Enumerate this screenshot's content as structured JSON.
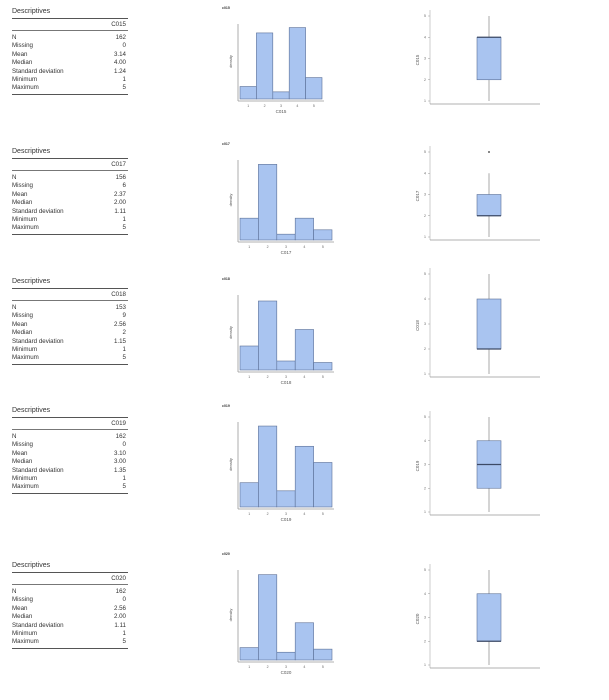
{
  "blocks": [
    {
      "variable": "C015",
      "descriptives": {
        "title": "Descriptives",
        "column": "C015",
        "rows": [
          {
            "label": "N",
            "value": "162"
          },
          {
            "label": "Missing",
            "value": "0"
          },
          {
            "label": "Mean",
            "value": "3.14"
          },
          {
            "label": "Median",
            "value": "4.00"
          },
          {
            "label": "Standard deviation",
            "value": "1.24"
          },
          {
            "label": "Minimum",
            "value": "1"
          },
          {
            "label": "Maximum",
            "value": "5"
          }
        ]
      },
      "histogram": {
        "title": "C015",
        "xlabel": "C015",
        "ylabel": "density"
      },
      "boxplot": {
        "ylabel": "C015"
      }
    },
    {
      "variable": "C017",
      "descriptives": {
        "title": "Descriptives",
        "column": "C017",
        "rows": [
          {
            "label": "N",
            "value": "156"
          },
          {
            "label": "Missing",
            "value": "6"
          },
          {
            "label": "Mean",
            "value": "2.37"
          },
          {
            "label": "Median",
            "value": "2.00"
          },
          {
            "label": "Standard deviation",
            "value": "1.11"
          },
          {
            "label": "Minimum",
            "value": "1"
          },
          {
            "label": "Maximum",
            "value": "5"
          }
        ]
      },
      "histogram": {
        "title": "C017",
        "xlabel": "C017",
        "ylabel": "density"
      },
      "boxplot": {
        "ylabel": "C017"
      }
    },
    {
      "variable": "C018",
      "descriptives": {
        "title": "Descriptives",
        "column": "C018",
        "rows": [
          {
            "label": "N",
            "value": "153"
          },
          {
            "label": "Missing",
            "value": "9"
          },
          {
            "label": "Mean",
            "value": "2.56"
          },
          {
            "label": "Median",
            "value": "2"
          },
          {
            "label": "Standard deviation",
            "value": "1.15"
          },
          {
            "label": "Minimum",
            "value": "1"
          },
          {
            "label": "Maximum",
            "value": "5"
          }
        ]
      },
      "histogram": {
        "title": "C018",
        "xlabel": "C018",
        "ylabel": "density"
      },
      "boxplot": {
        "ylabel": "C018"
      }
    },
    {
      "variable": "C019",
      "descriptives": {
        "title": "Descriptives",
        "column": "C019",
        "rows": [
          {
            "label": "N",
            "value": "162"
          },
          {
            "label": "Missing",
            "value": "0"
          },
          {
            "label": "Mean",
            "value": "3.10"
          },
          {
            "label": "Median",
            "value": "3.00"
          },
          {
            "label": "Standard deviation",
            "value": "1.35"
          },
          {
            "label": "Minimum",
            "value": "1"
          },
          {
            "label": "Maximum",
            "value": "5"
          }
        ]
      },
      "histogram": {
        "title": "C019",
        "xlabel": "C019",
        "ylabel": "density"
      },
      "boxplot": {
        "ylabel": "C019"
      }
    },
    {
      "variable": "C020",
      "descriptives": {
        "title": "Descriptives",
        "column": "C020",
        "rows": [
          {
            "label": "N",
            "value": "162"
          },
          {
            "label": "Missing",
            "value": "0"
          },
          {
            "label": "Mean",
            "value": "2.56"
          },
          {
            "label": "Median",
            "value": "2.00"
          },
          {
            "label": "Standard deviation",
            "value": "1.11"
          },
          {
            "label": "Minimum",
            "value": "1"
          },
          {
            "label": "Maximum",
            "value": "5"
          }
        ]
      },
      "histogram": {
        "title": "C020",
        "xlabel": "C020",
        "ylabel": "density"
      },
      "boxplot": {
        "ylabel": "C020"
      }
    }
  ],
  "colors": {
    "fill": "#a9c4f0",
    "stroke": "#5b6f96",
    "axis": "#999999",
    "median": "#3d4a66",
    "whisker": "#aaaaaa"
  },
  "chart_data": [
    {
      "type": "bar",
      "title": "C015",
      "xlabel": "C015",
      "ylabel": "density",
      "categories": [
        "1",
        "2",
        "3",
        "4",
        "5"
      ],
      "values": [
        0.07,
        0.37,
        0.04,
        0.4,
        0.12
      ],
      "ylim": [
        0,
        0.42
      ]
    },
    {
      "type": "box",
      "ylabel": "C015",
      "yticks": [
        1,
        2,
        3,
        4,
        5
      ],
      "min": 1,
      "q1": 2,
      "median": 4,
      "q3": 4,
      "max": 5,
      "outliers": []
    },
    {
      "type": "bar",
      "title": "C017",
      "xlabel": "C017",
      "ylabel": "density",
      "categories": [
        "1",
        "2",
        "3",
        "4",
        "5"
      ],
      "values": [
        0.15,
        0.52,
        0.04,
        0.15,
        0.07
      ],
      "ylim": [
        0,
        0.55
      ]
    },
    {
      "type": "box",
      "ylabel": "C017",
      "yticks": [
        1,
        2,
        3,
        4,
        5
      ],
      "min": 1,
      "q1": 2,
      "median": 2,
      "q3": 3,
      "max": 4,
      "outliers": [
        5
      ]
    },
    {
      "type": "bar",
      "title": "C018",
      "xlabel": "C018",
      "ylabel": "density",
      "categories": [
        "1",
        "2",
        "3",
        "4",
        "5"
      ],
      "values": [
        0.16,
        0.46,
        0.06,
        0.27,
        0.05
      ],
      "ylim": [
        0,
        0.5
      ]
    },
    {
      "type": "box",
      "ylabel": "C018",
      "yticks": [
        1,
        2,
        3,
        4,
        5
      ],
      "min": 1,
      "q1": 2,
      "median": 2,
      "q3": 4,
      "max": 5,
      "outliers": []
    },
    {
      "type": "bar",
      "title": "C019",
      "xlabel": "C019",
      "ylabel": "density",
      "categories": [
        "1",
        "2",
        "3",
        "4",
        "5"
      ],
      "values": [
        0.12,
        0.4,
        0.08,
        0.3,
        0.22
      ],
      "ylim": [
        0,
        0.42
      ]
    },
    {
      "type": "box",
      "ylabel": "C019",
      "yticks": [
        1,
        2,
        3,
        4,
        5
      ],
      "min": 1,
      "q1": 2,
      "median": 3,
      "q3": 4,
      "max": 5,
      "outliers": []
    },
    {
      "type": "bar",
      "title": "C020",
      "xlabel": "C020",
      "ylabel": "density",
      "categories": [
        "1",
        "2",
        "3",
        "4",
        "5"
      ],
      "values": [
        0.08,
        0.55,
        0.05,
        0.24,
        0.07
      ],
      "ylim": [
        0,
        0.58
      ]
    },
    {
      "type": "box",
      "ylabel": "C020",
      "yticks": [
        1,
        2,
        3,
        4,
        5
      ],
      "min": 1,
      "q1": 2,
      "median": 2,
      "q3": 4,
      "max": 5,
      "outliers": []
    }
  ]
}
